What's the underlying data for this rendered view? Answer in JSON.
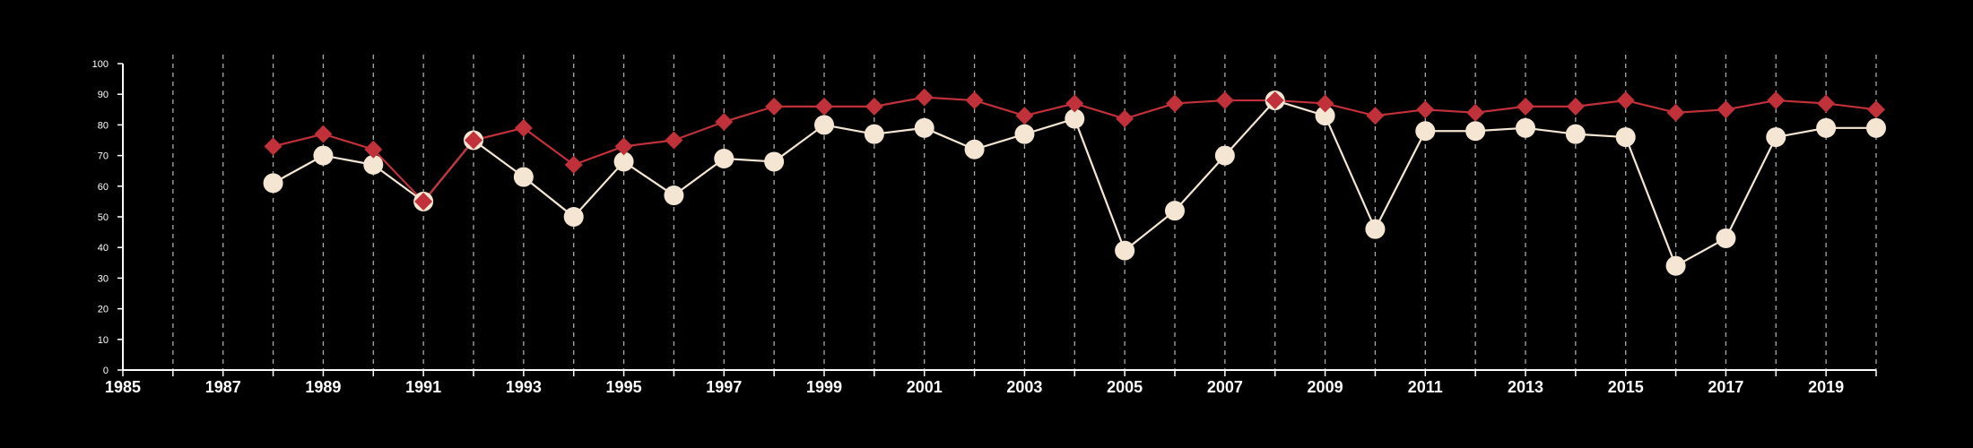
{
  "chart_data": {
    "type": "line",
    "title": "",
    "xlabel": "",
    "ylabel": "",
    "xlim": [
      1985,
      2020
    ],
    "ylim": [
      0,
      100
    ],
    "y_ticks": [
      0,
      10,
      20,
      30,
      40,
      50,
      60,
      70,
      80,
      90,
      100
    ],
    "x_tick_labels": [
      1985,
      1987,
      1989,
      1991,
      1993,
      1995,
      1997,
      1999,
      2001,
      2003,
      2005,
      2007,
      2009,
      2011,
      2013,
      2015,
      2017,
      2019
    ],
    "grid": "vertical dashed lines at each year",
    "legend": "none",
    "x": [
      1988,
      1989,
      1990,
      1991,
      1992,
      1993,
      1994,
      1995,
      1996,
      1997,
      1998,
      1999,
      2000,
      2001,
      2002,
      2003,
      2004,
      2005,
      2006,
      2007,
      2008,
      2009,
      2010,
      2011,
      2012,
      2013,
      2014,
      2015,
      2016,
      2017,
      2018,
      2019,
      2020
    ],
    "series": [
      {
        "marker": "diamond",
        "color": "#c0313a",
        "values": [
          73,
          77,
          72,
          55,
          75,
          79,
          67,
          73,
          75,
          81,
          86,
          86,
          86,
          89,
          88,
          83,
          87,
          82,
          87,
          88,
          88,
          87,
          83,
          85,
          84,
          86,
          86,
          88,
          84,
          85,
          88,
          87,
          85
        ]
      },
      {
        "marker": "circle",
        "color": "#f5e6d3",
        "values": [
          61,
          70,
          67,
          55,
          75,
          63,
          50,
          68,
          57,
          69,
          68,
          80,
          77,
          79,
          72,
          77,
          82,
          39,
          52,
          70,
          88,
          83,
          46,
          78,
          78,
          79,
          77,
          76,
          34,
          43,
          76,
          79,
          79
        ]
      }
    ]
  },
  "colors": {
    "background": "#000000",
    "axis": "#ffffff",
    "grid": "#aaaaaa"
  }
}
